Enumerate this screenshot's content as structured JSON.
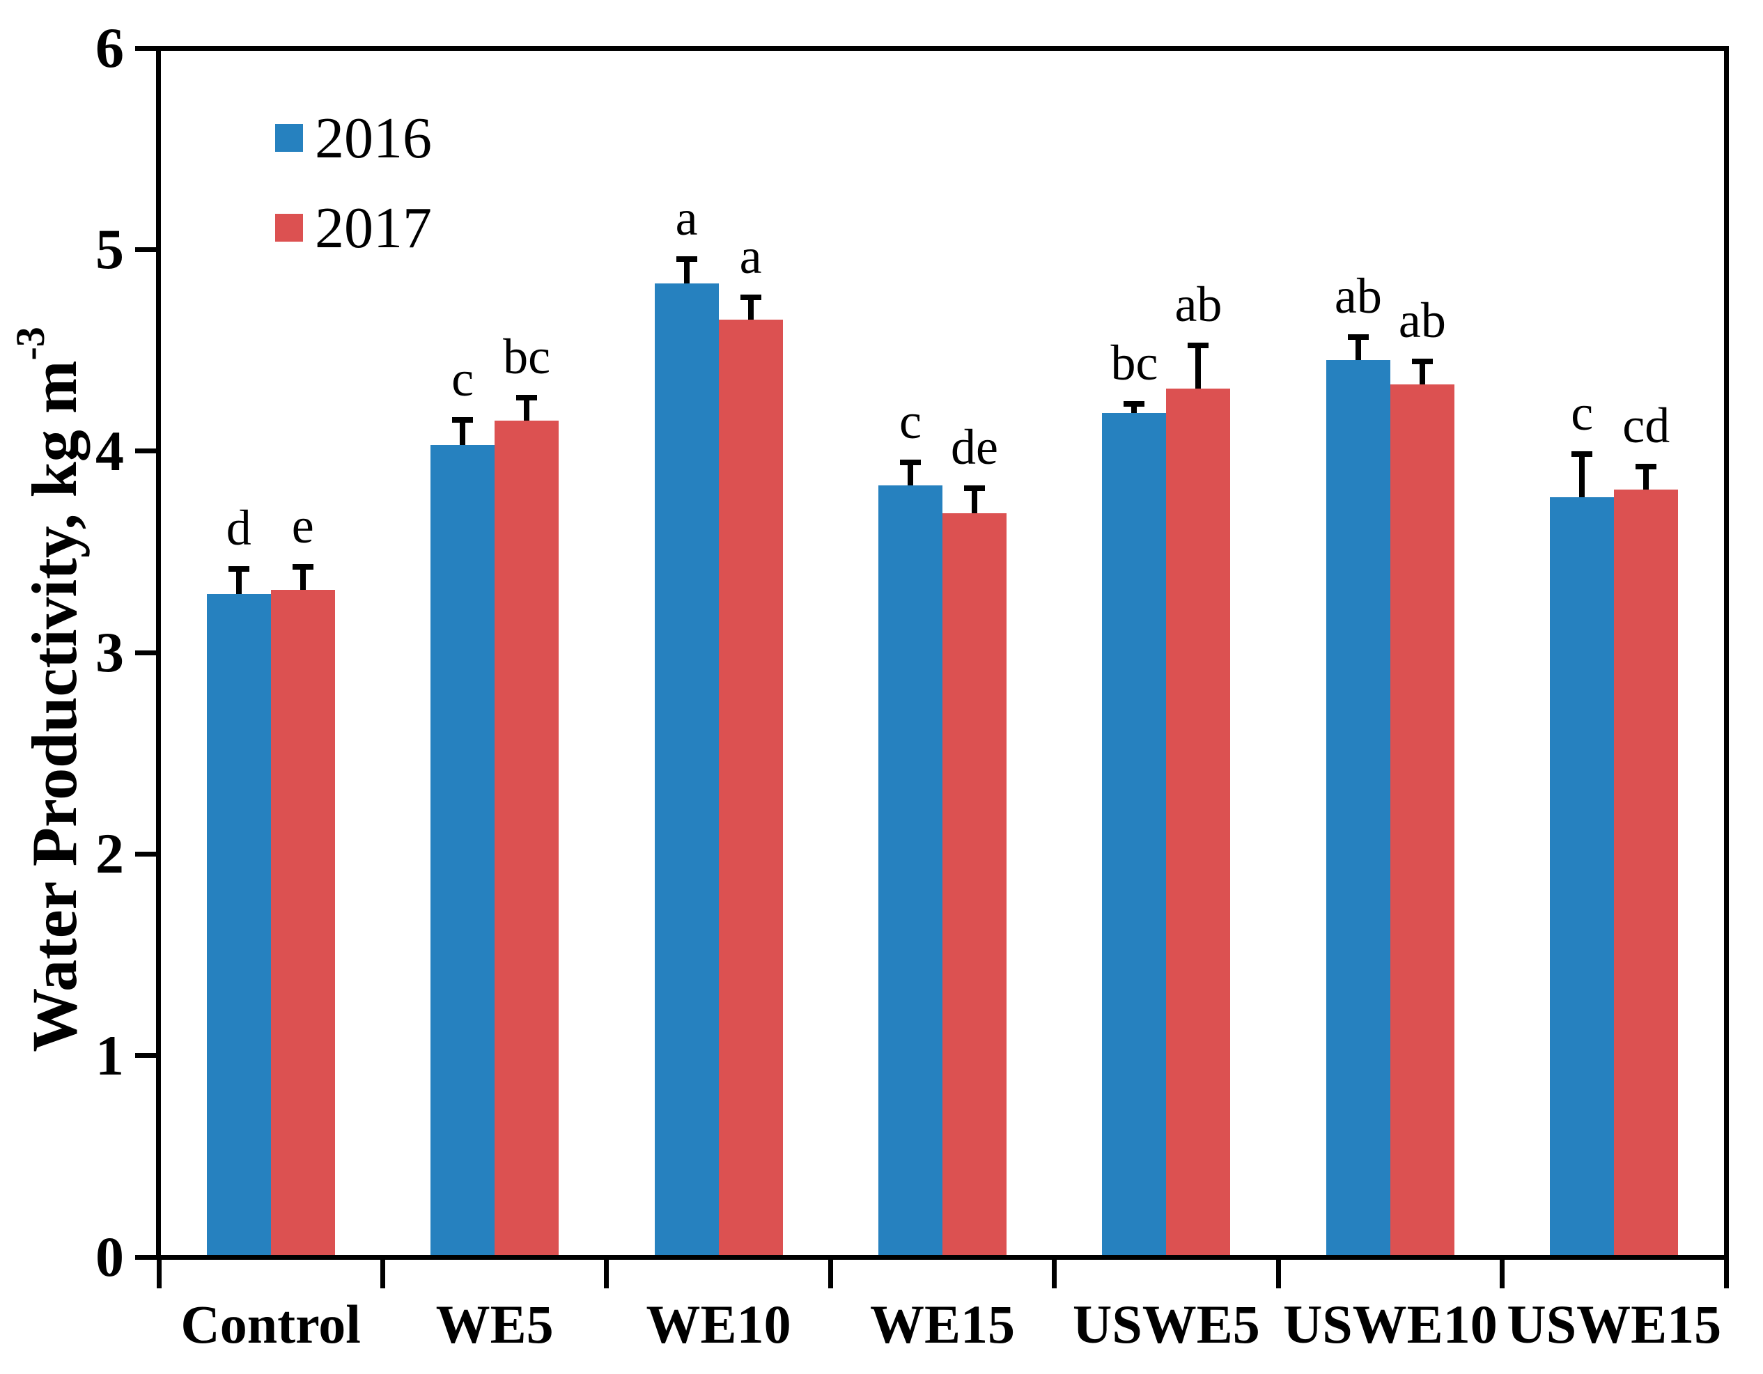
{
  "figure": {
    "background": "#ffffff"
  },
  "chart_data": {
    "type": "bar",
    "title": "",
    "ylabel": "Water Productivity, kg m",
    "ylabel_superscript": "-3",
    "xlabel": "",
    "ylim": [
      0,
      6
    ],
    "ytick_values": [
      0,
      1,
      2,
      3,
      4,
      5,
      6
    ],
    "grid": false,
    "legend_position": "upper-left-inside",
    "categories": [
      "Control",
      "WE5",
      "WE10",
      "WE15",
      "USWE5",
      "USWE10",
      "USWE15"
    ],
    "series": [
      {
        "name": "2016",
        "color": "#2681BF",
        "values": [
          3.28,
          4.02,
          4.82,
          3.82,
          4.18,
          4.44,
          3.76
        ],
        "errors": [
          0.11,
          0.11,
          0.11,
          0.1,
          0.03,
          0.1,
          0.2
        ],
        "sig_letters": [
          "d",
          "c",
          "a",
          "c",
          "bc",
          "ab",
          "c"
        ]
      },
      {
        "name": "2017",
        "color": "#DC5151",
        "values": [
          3.3,
          4.14,
          4.64,
          3.68,
          4.3,
          4.32,
          3.8
        ],
        "errors": [
          0.1,
          0.1,
          0.1,
          0.11,
          0.2,
          0.1,
          0.1
        ],
        "sig_letters": [
          "e",
          "bc",
          "a",
          "de",
          "ab",
          "ab",
          "cd"
        ]
      }
    ],
    "error_bar_color": "#000000",
    "axis_color": "#000000"
  }
}
